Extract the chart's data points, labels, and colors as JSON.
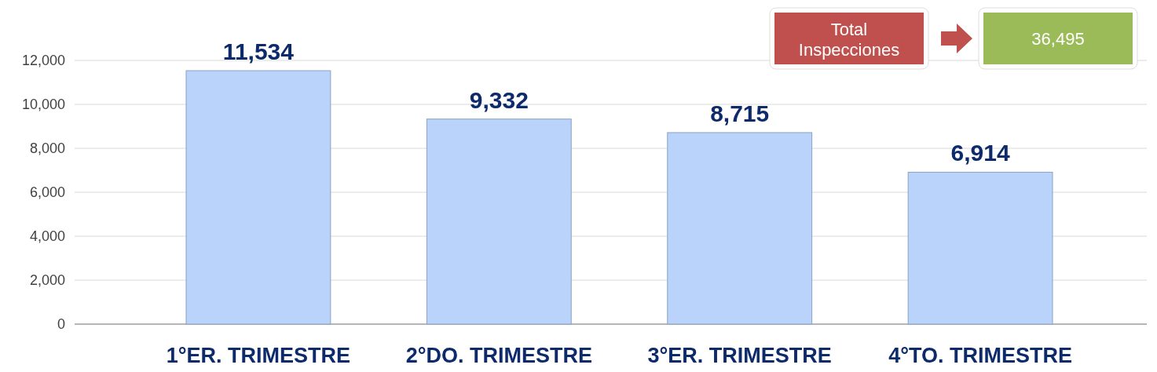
{
  "chart_data": {
    "type": "bar",
    "categories": [
      "1°ER. TRIMESTRE",
      "2°DO. TRIMESTRE",
      "3°ER. TRIMESTRE",
      "4°TO. TRIMESTRE"
    ],
    "values": [
      11534,
      9332,
      8715,
      6914
    ],
    "color": "#b9d3fb",
    "ylim": [
      0,
      12000
    ],
    "yticks": [
      {
        "value": 0,
        "label": "0"
      },
      {
        "value": 2000,
        "label": "2,000"
      },
      {
        "value": 4000,
        "label": "4,000"
      },
      {
        "value": 6000,
        "label": "6,000"
      },
      {
        "value": 8000,
        "label": "8,000"
      },
      {
        "value": 10000,
        "label": "10,000"
      },
      {
        "value": 12000,
        "label": "12,000"
      }
    ],
    "grid": "y",
    "value_labels": [
      "11,534",
      "9,332",
      "8,715",
      "6,914"
    ],
    "annotations": [
      "Total Inspecciones",
      "36,495"
    ]
  }
}
